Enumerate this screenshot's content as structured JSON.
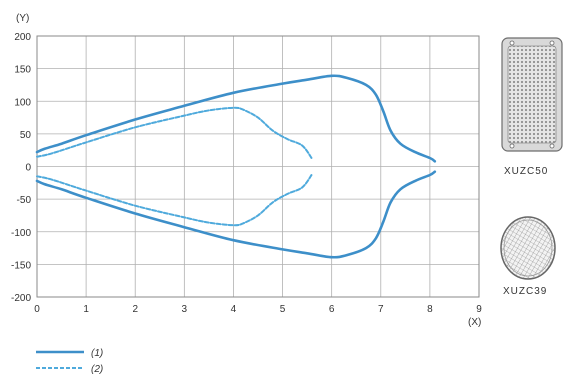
{
  "chart_data": {
    "type": "line",
    "xlabel": "(X)",
    "ylabel": "(Y)",
    "xlim": [
      0,
      9
    ],
    "ylim": [
      -200,
      200
    ],
    "grid": true,
    "xticks": [
      "0",
      "1",
      "2",
      "3",
      "4",
      "5",
      "6",
      "7",
      "8",
      "9"
    ],
    "yticks": [
      "200",
      "150",
      "100",
      "50",
      "0",
      "-50",
      "-100",
      "-150",
      "-200"
    ],
    "colors": {
      "series1": "#3d8fc9",
      "series2": "#4faadc"
    },
    "series": [
      {
        "name": "(1)",
        "style": "solid",
        "upper": [
          [
            0,
            22
          ],
          [
            0.15,
            27
          ],
          [
            0.5,
            35
          ],
          [
            1,
            48
          ],
          [
            2,
            72
          ],
          [
            3,
            93
          ],
          [
            4,
            113
          ],
          [
            5,
            127
          ],
          [
            5.5,
            133
          ],
          [
            6,
            139
          ],
          [
            6.3,
            136
          ],
          [
            6.7,
            125
          ],
          [
            6.9,
            110
          ],
          [
            7.05,
            85
          ],
          [
            7.2,
            55
          ],
          [
            7.4,
            35
          ],
          [
            7.7,
            22
          ],
          [
            8,
            13
          ],
          [
            8.1,
            8
          ]
        ],
        "lower": [
          [
            0,
            -22
          ],
          [
            0.15,
            -27
          ],
          [
            0.5,
            -35
          ],
          [
            1,
            -48
          ],
          [
            2,
            -72
          ],
          [
            3,
            -93
          ],
          [
            4,
            -113
          ],
          [
            5,
            -127
          ],
          [
            5.5,
            -133
          ],
          [
            6,
            -139
          ],
          [
            6.3,
            -136
          ],
          [
            6.7,
            -125
          ],
          [
            6.9,
            -110
          ],
          [
            7.05,
            -85
          ],
          [
            7.2,
            -55
          ],
          [
            7.4,
            -35
          ],
          [
            7.7,
            -22
          ],
          [
            8,
            -13
          ],
          [
            8.1,
            -8
          ]
        ]
      },
      {
        "name": "(2)",
        "style": "dashed",
        "upper": [
          [
            0,
            15
          ],
          [
            0.3,
            20
          ],
          [
            1,
            37
          ],
          [
            2,
            60
          ],
          [
            3,
            78
          ],
          [
            3.5,
            86
          ],
          [
            4,
            90
          ],
          [
            4.2,
            87
          ],
          [
            4.5,
            75
          ],
          [
            4.8,
            55
          ],
          [
            5.1,
            42
          ],
          [
            5.4,
            32
          ],
          [
            5.6,
            12
          ]
        ],
        "lower": [
          [
            0,
            -15
          ],
          [
            0.3,
            -20
          ],
          [
            1,
            -37
          ],
          [
            2,
            -60
          ],
          [
            3,
            -78
          ],
          [
            3.5,
            -86
          ],
          [
            4,
            -90
          ],
          [
            4.2,
            -87
          ],
          [
            4.5,
            -75
          ],
          [
            4.8,
            -55
          ],
          [
            5.1,
            -42
          ],
          [
            5.4,
            -32
          ],
          [
            5.6,
            -12
          ]
        ]
      }
    ],
    "legend": {
      "placement": "bottom-left",
      "entries": [
        "(1)",
        "(2)"
      ]
    },
    "products": [
      {
        "label": "XUZC50",
        "icon": "square-reflector-icon"
      },
      {
        "label": "XUZC39",
        "icon": "round-reflector-icon"
      }
    ]
  }
}
